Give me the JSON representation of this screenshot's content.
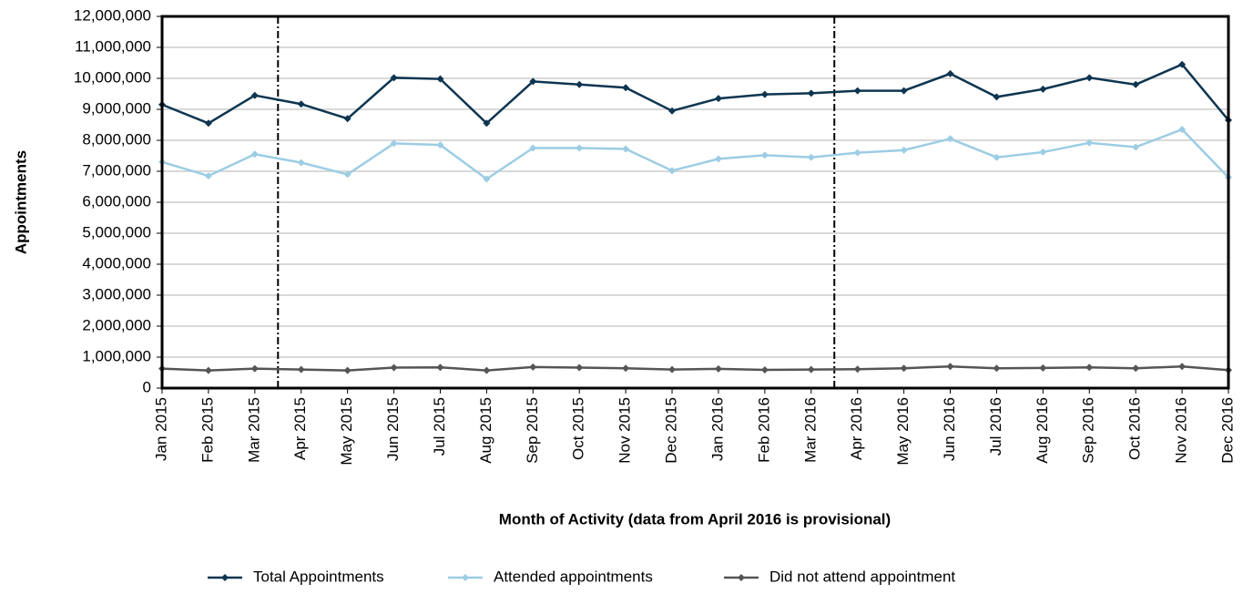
{
  "chart_data": {
    "type": "line",
    "x_label": "Month of Activity (data from April 2016 is provisional)",
    "y_label": "Appointments",
    "categories": [
      "Jan 2015",
      "Feb 2015",
      "Mar 2015",
      "Apr 2015",
      "May 2015",
      "Jun 2015",
      "Jul 2015",
      "Aug 2015",
      "Sep 2015",
      "Oct 2015",
      "Nov 2015",
      "Dec 2015",
      "Jan 2016",
      "Feb 2016",
      "Mar 2016",
      "Apr 2016",
      "May 2016",
      "Jun 2016",
      "Jul 2016",
      "Aug 2016",
      "Sep 2016",
      "Oct 2016",
      "Nov 2016",
      "Dec 2016"
    ],
    "series": [
      {
        "name": "Total Appointments",
        "color": "#0e3550",
        "values": [
          9150000,
          8550000,
          9450000,
          9170000,
          8700000,
          10020000,
          9980000,
          8550000,
          9900000,
          9800000,
          9700000,
          8950000,
          9350000,
          9480000,
          9520000,
          9600000,
          9600000,
          10150000,
          9400000,
          9650000,
          10020000,
          9800000,
          10450000,
          8650000
        ]
      },
      {
        "name": "Attended appointments",
        "color": "#9ccde4",
        "values": [
          7300000,
          6850000,
          7550000,
          7280000,
          6900000,
          7900000,
          7850000,
          6750000,
          7750000,
          7750000,
          7720000,
          7020000,
          7400000,
          7520000,
          7450000,
          7600000,
          7680000,
          8050000,
          7450000,
          7620000,
          7920000,
          7780000,
          8350000,
          6800000
        ]
      },
      {
        "name": "Did not attend appointment",
        "color": "#555555",
        "values": [
          630000,
          570000,
          630000,
          600000,
          570000,
          660000,
          670000,
          570000,
          680000,
          660000,
          640000,
          600000,
          620000,
          590000,
          600000,
          610000,
          640000,
          700000,
          640000,
          650000,
          670000,
          640000,
          700000,
          580000
        ]
      }
    ],
    "ylim": [
      0,
      12000000
    ],
    "yticks": [
      0,
      {
        "value": 1000000,
        "label": "1,000,000"
      },
      {
        "value": 2000000,
        "label": "2,000,000"
      },
      {
        "value": 3000000,
        "label": "3,000,000"
      },
      {
        "value": 4000000,
        "label": "4,000,000"
      },
      {
        "value": 5000000,
        "label": "5,000,000"
      },
      {
        "value": 6000000,
        "label": "6,000,000"
      },
      {
        "value": 7000000,
        "label": "7,000,000"
      },
      {
        "value": 8000000,
        "label": "8,000,000"
      },
      {
        "value": 9000000,
        "label": "9,000,000"
      },
      {
        "value": 10000000,
        "label": "10,000,000"
      },
      {
        "value": 11000000,
        "label": "11,000,000"
      },
      {
        "value": 12000000,
        "label": "12,000,000"
      }
    ],
    "grid": true,
    "legend": "bottom"
  }
}
